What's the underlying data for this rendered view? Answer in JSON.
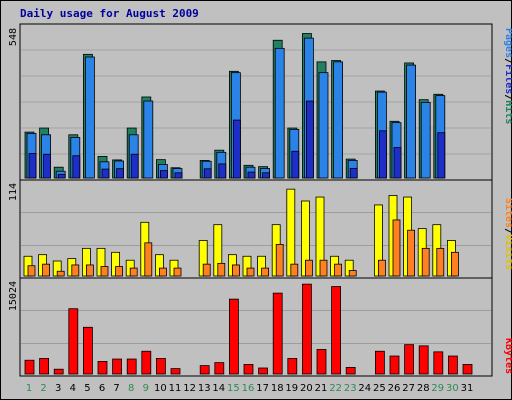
{
  "title": "Daily usage for August 2009",
  "colors": {
    "background": "#c0c0c0",
    "title": "#0000a0",
    "hits": "#208060",
    "files": "#2b83e8",
    "pages": "#1e2ec8",
    "visits": "#ffff00",
    "sites": "#ff8020",
    "kbytes": "#ff0000",
    "weekend_label": "#2e8b57",
    "weekday_label": "#000000",
    "grid": "#888888"
  },
  "chart_data": [
    {
      "type": "bar",
      "panel": "pages_files_hits",
      "ymax_label": "548",
      "ylim": [
        0,
        548
      ],
      "legend": [
        "Pages",
        "/",
        "Files",
        "/",
        "Hits"
      ],
      "x": [
        1,
        2,
        3,
        4,
        5,
        6,
        7,
        8,
        9,
        10,
        11,
        12,
        13,
        14,
        15,
        16,
        17,
        18,
        19,
        20,
        21,
        22,
        23,
        24,
        25,
        26,
        27,
        28,
        29,
        30,
        31
      ],
      "series": [
        {
          "name": "Hits",
          "values": [
            170,
            185,
            40,
            160,
            458,
            80,
            67,
            185,
            300,
            68,
            38,
            0,
            65,
            103,
            395,
            47,
            42,
            510,
            185,
            535,
            430,
            435,
            70,
            0,
            322,
            210,
            426,
            290,
            310,
            0,
            0
          ]
        },
        {
          "name": "Files",
          "values": [
            165,
            160,
            25,
            150,
            448,
            60,
            63,
            160,
            285,
            50,
            35,
            0,
            62,
            95,
            390,
            40,
            35,
            480,
            180,
            518,
            390,
            430,
            65,
            0,
            318,
            205,
            418,
            280,
            305,
            0,
            0
          ]
        },
        {
          "name": "Pages",
          "values": [
            165,
            160,
            30,
            155,
            0,
            58,
            65,
            165,
            0,
            65,
            35,
            0,
            62,
            96,
            388,
            45,
            40,
            0,
            180,
            522,
            0,
            0,
            68,
            0,
            322,
            205,
            0,
            0,
            308,
            0,
            0
          ]
        }
      ]
    },
    {
      "type": "bar",
      "panel": "visits_sites",
      "ymax_label": "114",
      "ylim": [
        0,
        114
      ],
      "legend": [
        "Sites",
        "/",
        "Visits"
      ],
      "x": [
        1,
        2,
        3,
        4,
        5,
        6,
        7,
        8,
        9,
        10,
        11,
        12,
        13,
        14,
        15,
        16,
        17,
        18,
        19,
        20,
        21,
        22,
        23,
        24,
        25,
        26,
        27,
        28,
        29,
        30,
        31
      ],
      "series": [
        {
          "name": "Visits",
          "values": [
            25,
            27,
            19,
            22,
            35,
            35,
            30,
            20,
            68,
            27,
            20,
            0,
            45,
            65,
            27,
            25,
            25,
            65,
            110,
            95,
            100,
            25,
            20,
            0,
            90,
            102,
            100,
            60,
            65,
            45,
            0
          ]
        },
        {
          "name": "Sites",
          "values": [
            13,
            15,
            6,
            14,
            14,
            12,
            12,
            10,
            42,
            10,
            10,
            0,
            15,
            16,
            14,
            10,
            10,
            40,
            15,
            20,
            20,
            15,
            7,
            0,
            20,
            71,
            58,
            35,
            35,
            30,
            0
          ]
        }
      ]
    },
    {
      "type": "bar",
      "panel": "kbytes",
      "ymax_label": "15024",
      "ylim": [
        0,
        15024
      ],
      "legend": [
        "KBytes"
      ],
      "x": [
        1,
        2,
        3,
        4,
        5,
        6,
        7,
        8,
        9,
        10,
        11,
        12,
        13,
        14,
        15,
        16,
        17,
        18,
        19,
        20,
        21,
        22,
        23,
        24,
        25,
        26,
        27,
        28,
        29,
        30,
        31
      ],
      "series": [
        {
          "name": "KBytes",
          "values": [
            2300,
            2600,
            800,
            10900,
            7800,
            2100,
            2500,
            2500,
            3800,
            2600,
            900,
            0,
            1400,
            1900,
            12500,
            1600,
            1000,
            13500,
            2600,
            15000,
            4100,
            14600,
            1100,
            0,
            3800,
            3000,
            4900,
            4700,
            3700,
            3000,
            1600
          ]
        }
      ]
    }
  ],
  "x_labels": [
    "1",
    "2",
    "3",
    "4",
    "5",
    "6",
    "7",
    "8",
    "9",
    "10",
    "11",
    "12",
    "13",
    "14",
    "15",
    "16",
    "17",
    "18",
    "19",
    "20",
    "21",
    "22",
    "23",
    "24",
    "25",
    "26",
    "27",
    "28",
    "29",
    "30",
    "31"
  ],
  "weekend_days": [
    1,
    2,
    8,
    9,
    15,
    16,
    22,
    23,
    29,
    30
  ]
}
